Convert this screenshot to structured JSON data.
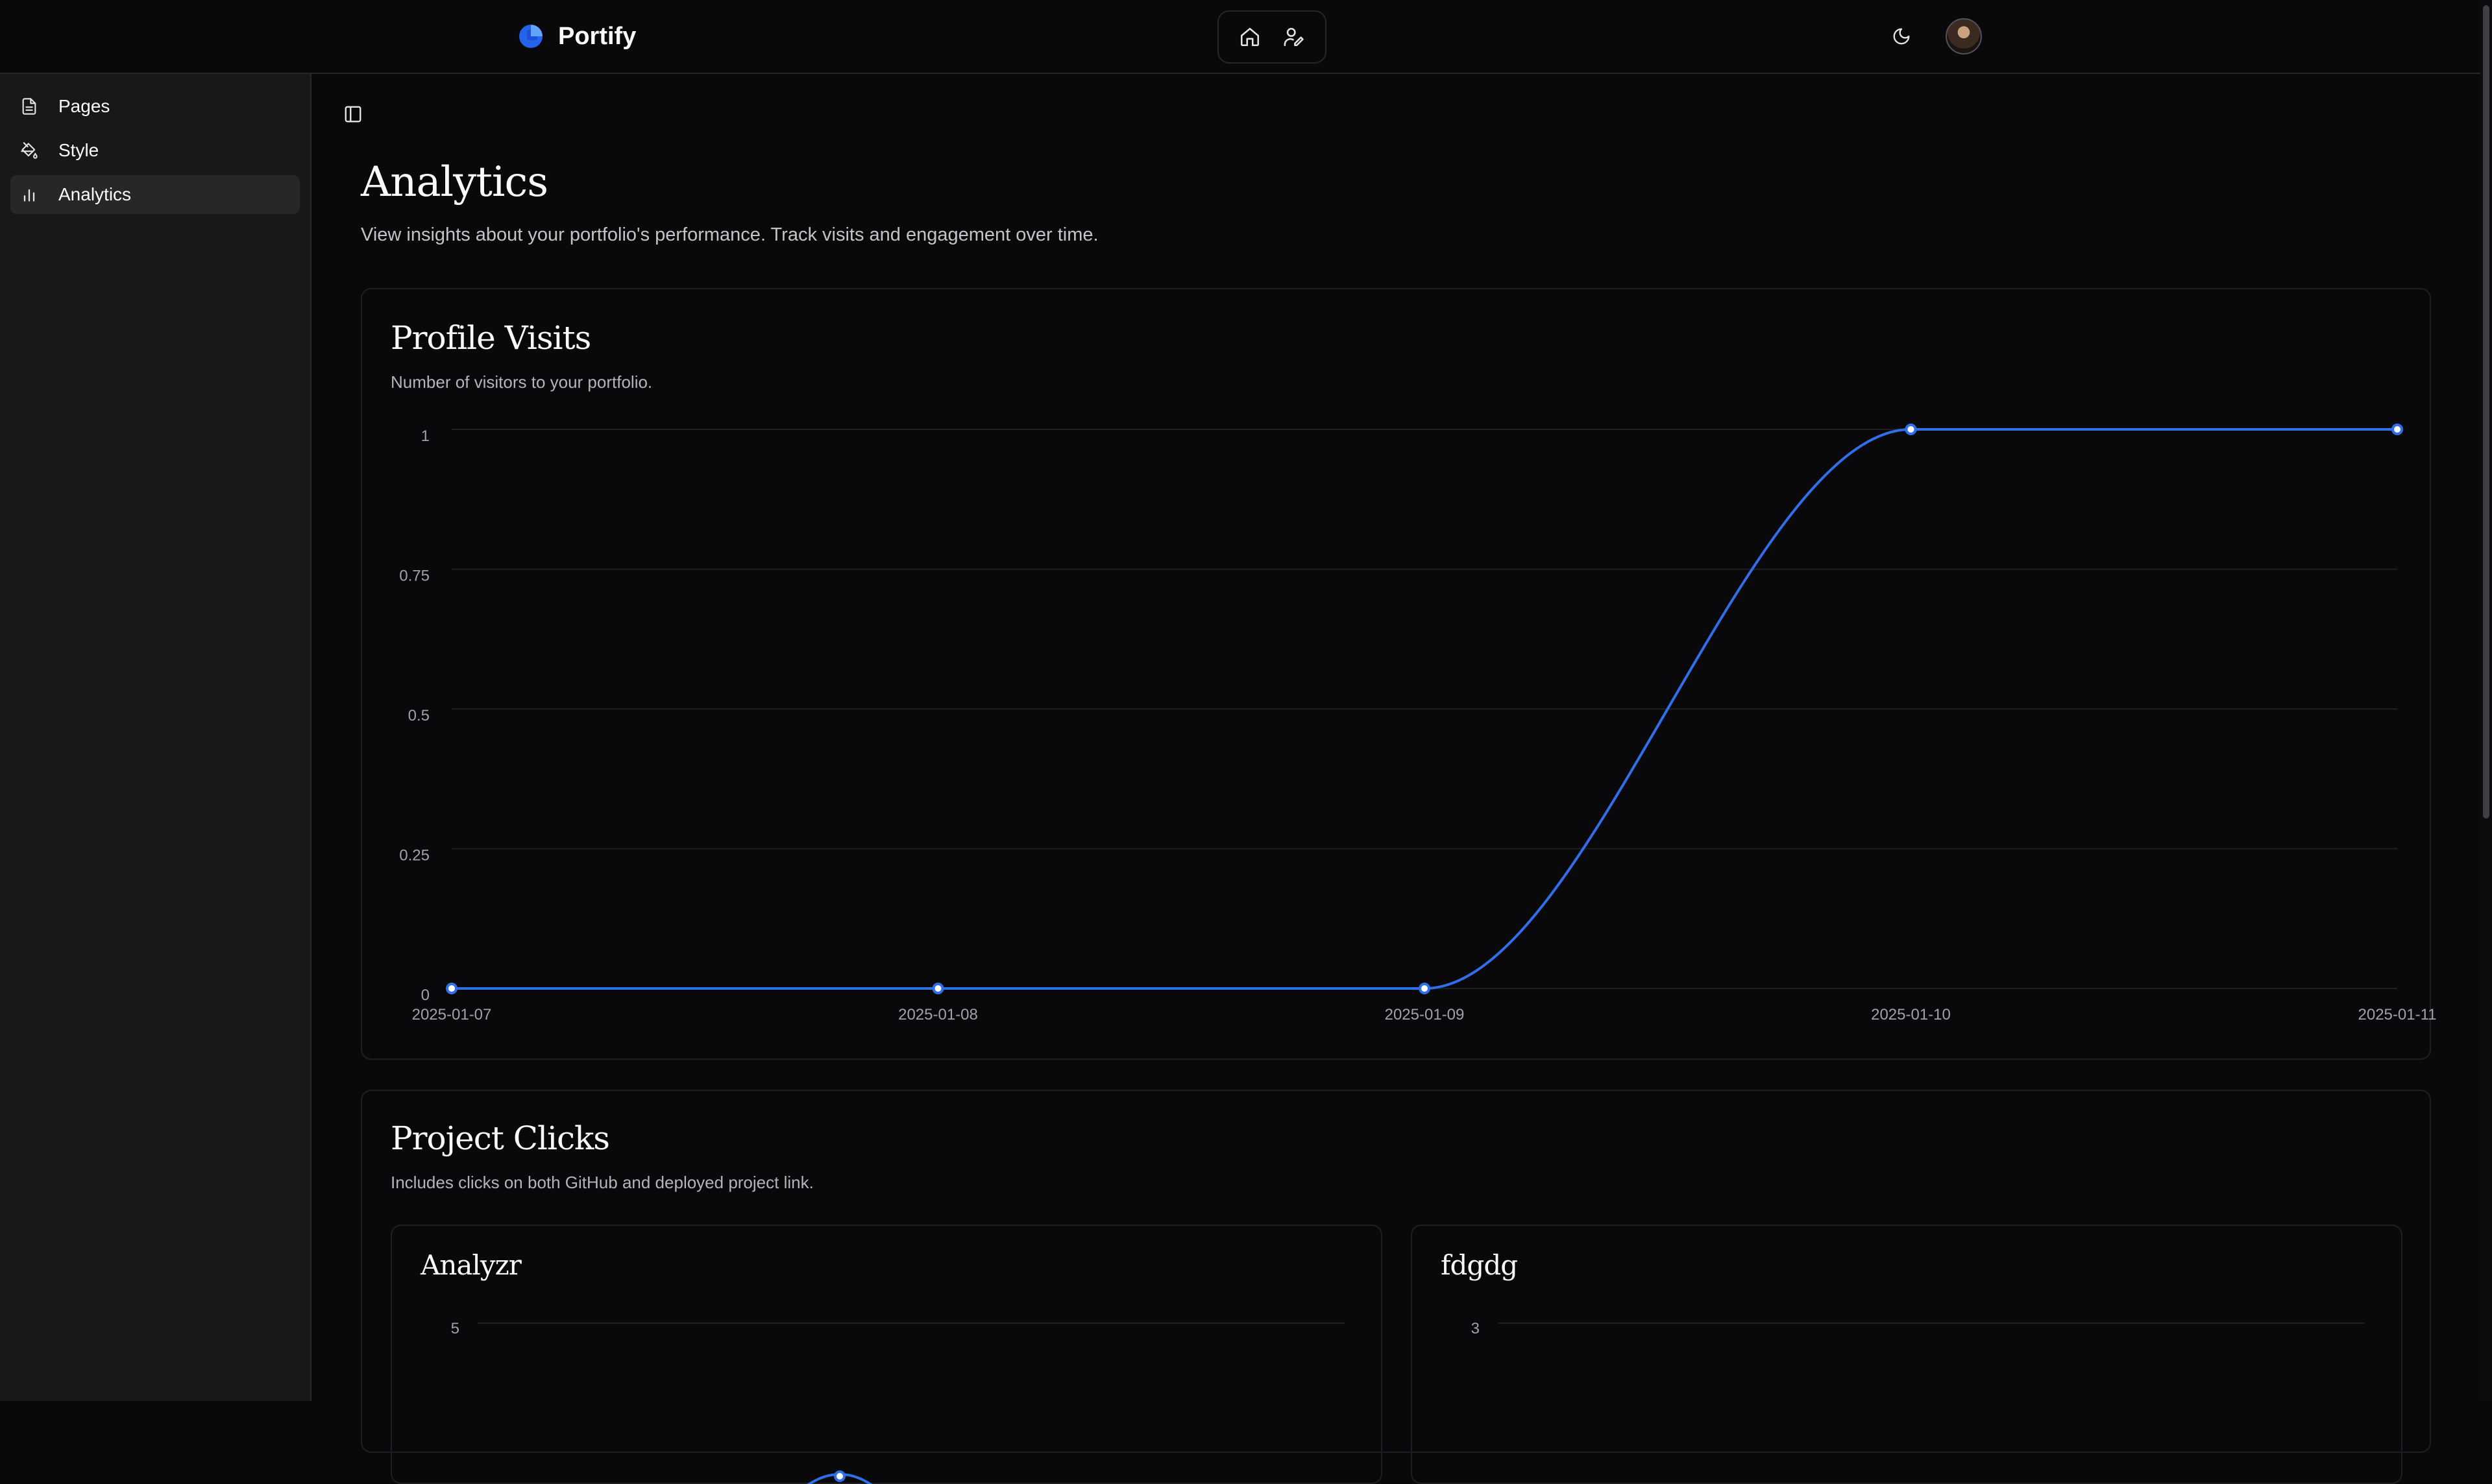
{
  "app": {
    "name": "Portify"
  },
  "icons": {
    "brand": "portify-logo-icon",
    "nav": [
      "home-icon",
      "user-edit-icon"
    ],
    "theme": "moon-icon",
    "sidebar_toggle": "panel-left-icon"
  },
  "colors": {
    "accent": "#2f6fe9",
    "background": "#09090b",
    "sidebar": "#18181b"
  },
  "sidebar": {
    "items": [
      {
        "label": "Pages",
        "icon": "file-text-icon",
        "active": false
      },
      {
        "label": "Style",
        "icon": "paint-bucket-icon",
        "active": false
      },
      {
        "label": "Analytics",
        "icon": "bar-chart-icon",
        "active": true
      }
    ]
  },
  "main": {
    "title": "Analytics",
    "subtitle": "View insights about your portfolio's performance. Track visits and engagement over time."
  },
  "profile_visits": {
    "title": "Profile Visits",
    "description": "Number of visitors to your portfolio."
  },
  "project_clicks": {
    "title": "Project Clicks",
    "description": "Includes clicks on both GitHub and deployed project link."
  },
  "chart_data": [
    {
      "type": "line",
      "title": "Profile Visits",
      "x": [
        "2025-01-07",
        "2025-01-08",
        "2025-01-09",
        "2025-01-10",
        "2025-01-11"
      ],
      "series": [
        {
          "values": [
            0,
            0,
            0,
            1,
            1
          ]
        }
      ],
      "yticks": [
        "0",
        "0.25",
        "0.5",
        "0.75",
        "1"
      ],
      "ylim": [
        0,
        1
      ],
      "grid": true,
      "color": "#2f6fe9"
    },
    {
      "type": "line",
      "title": "Analyzr",
      "yticks": [
        "5"
      ],
      "ylim": [
        0,
        5
      ],
      "grid": true,
      "color": "#2f6fe9"
    },
    {
      "type": "line",
      "title": "fdgdg",
      "yticks": [
        "3"
      ],
      "ylim": [
        0,
        3
      ],
      "grid": true,
      "color": "#2f6fe9"
    }
  ]
}
